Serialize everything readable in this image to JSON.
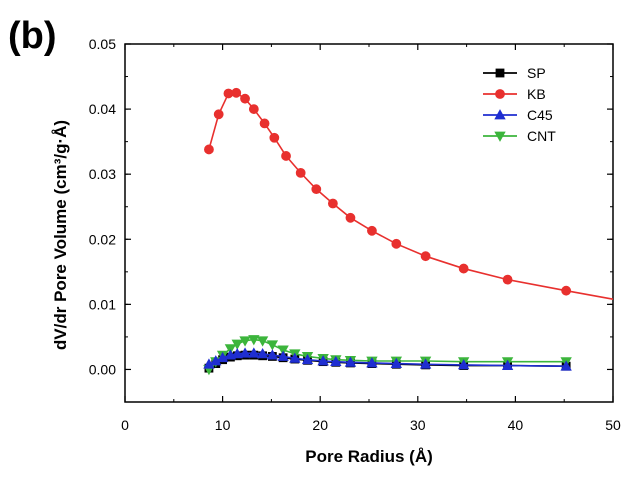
{
  "panel_label": "(b)",
  "chart_data": {
    "type": "line",
    "xlabel": "Pore Radius (Å)",
    "ylabel": "dV/dr Pore Volume (cm³/g·Å)",
    "xlim": [
      0,
      50
    ],
    "ylim": [
      -0.005,
      0.05
    ],
    "x_ticks": [
      0,
      10,
      20,
      30,
      40,
      50
    ],
    "y_ticks": [
      0.0,
      0.01,
      0.02,
      0.03,
      0.04,
      0.05
    ],
    "x_tick_labels": [
      "0",
      "10",
      "20",
      "30",
      "40",
      "50"
    ],
    "y_tick_labels": [
      "0.00",
      "0.01",
      "0.02",
      "0.03",
      "0.04",
      "0.05"
    ],
    "grid": false,
    "legend_position": "top-right",
    "series": [
      {
        "name": "SP",
        "color": "#000000",
        "marker": "square",
        "x": [
          8.6,
          9.3,
          10.0,
          10.8,
          11.5,
          12.3,
          13.2,
          14.1,
          15.1,
          16.2,
          17.4,
          18.7,
          20.3,
          21.6,
          23.1,
          25.3,
          27.8,
          30.8,
          34.7,
          39.2,
          45.2
        ],
        "y": [
          0.0002,
          0.0009,
          0.0015,
          0.0019,
          0.0021,
          0.0022,
          0.0022,
          0.0021,
          0.002,
          0.0018,
          0.0016,
          0.0014,
          0.0012,
          0.0011,
          0.001,
          0.0009,
          0.0008,
          0.0007,
          0.0006,
          0.0006,
          0.0005
        ]
      },
      {
        "name": "KB",
        "color": "#e8302e",
        "marker": "circle",
        "x": [
          8.6,
          9.6,
          10.6,
          11.4,
          12.3,
          13.2,
          14.3,
          15.3,
          16.5,
          18.0,
          19.6,
          21.3,
          23.1,
          25.3,
          27.8,
          30.8,
          34.7,
          39.2,
          45.2,
          51.0
        ],
        "y": [
          0.0338,
          0.0392,
          0.0424,
          0.0425,
          0.0416,
          0.04,
          0.0378,
          0.0356,
          0.0328,
          0.0302,
          0.0277,
          0.0255,
          0.0233,
          0.0213,
          0.0193,
          0.0174,
          0.0155,
          0.0138,
          0.0121,
          0.0108
        ]
      },
      {
        "name": "C45",
        "color": "#1f2ed1",
        "marker": "triangle-up",
        "x": [
          8.6,
          9.3,
          10.0,
          10.8,
          11.5,
          12.3,
          13.2,
          14.1,
          15.1,
          16.2,
          17.4,
          18.7,
          20.3,
          21.6,
          23.1,
          25.3,
          27.8,
          30.8,
          34.7,
          39.2,
          45.2
        ],
        "y": [
          0.0008,
          0.0013,
          0.0018,
          0.0022,
          0.0024,
          0.0025,
          0.0025,
          0.0024,
          0.0022,
          0.002,
          0.0017,
          0.0015,
          0.0013,
          0.0012,
          0.0011,
          0.001,
          0.0009,
          0.0008,
          0.0007,
          0.0006,
          0.0005
        ]
      },
      {
        "name": "CNT",
        "color": "#3cb53c",
        "marker": "triangle-down",
        "x": [
          8.6,
          9.3,
          10.0,
          10.8,
          11.5,
          12.3,
          13.2,
          14.1,
          15.1,
          16.2,
          17.4,
          18.7,
          20.3,
          21.6,
          23.1,
          25.3,
          27.8,
          30.8,
          34.7,
          39.2,
          45.2
        ],
        "y": [
          0.0,
          0.0012,
          0.0022,
          0.0032,
          0.0039,
          0.0044,
          0.0046,
          0.0044,
          0.0038,
          0.003,
          0.0024,
          0.002,
          0.0017,
          0.0015,
          0.0014,
          0.0013,
          0.0013,
          0.0013,
          0.0012,
          0.0012,
          0.0012
        ]
      }
    ]
  }
}
